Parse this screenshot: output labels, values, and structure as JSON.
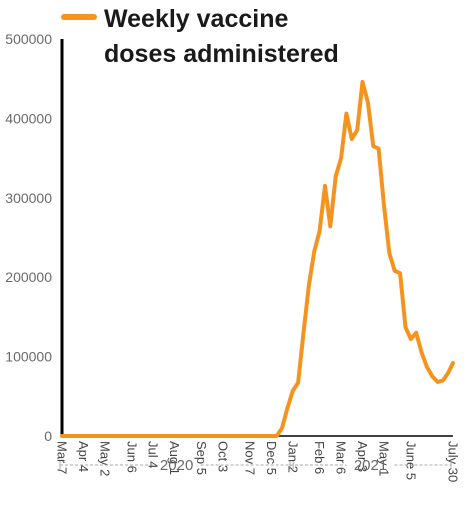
{
  "chart_data": {
    "type": "line",
    "legend": {
      "label_lines": [
        "Weekly vaccine",
        "doses administered"
      ],
      "placement": "top-left"
    },
    "colors": {
      "series": "#F5931F",
      "axis": "#000000",
      "text": "#6a6a6a",
      "bracket": "#aaaaaa"
    },
    "ylim": [
      0,
      500000
    ],
    "y_ticks": [
      0,
      100000,
      200000,
      300000,
      400000,
      500000
    ],
    "y_tick_labels": [
      "0",
      "100000",
      "200000",
      "300000",
      "400000",
      "500000"
    ],
    "x_range": [
      "2020-03-07",
      "2021-07-30"
    ],
    "x_ticks": [
      {
        "label": "Mar 7",
        "date": "2020-03-07"
      },
      {
        "label": "Apr 4",
        "date": "2020-04-04"
      },
      {
        "label": "May 2",
        "date": "2020-05-02"
      },
      {
        "label": "Jun 6",
        "date": "2020-06-06"
      },
      {
        "label": "Jul 4",
        "date": "2020-07-04"
      },
      {
        "label": "Aug 1",
        "date": "2020-08-01"
      },
      {
        "label": "Sep 5",
        "date": "2020-09-05"
      },
      {
        "label": "Oct 3",
        "date": "2020-10-03"
      },
      {
        "label": "Nov 7",
        "date": "2020-11-07"
      },
      {
        "label": "Dec 5",
        "date": "2020-12-05"
      },
      {
        "label": "Jan 2",
        "date": "2021-01-02"
      },
      {
        "label": "Feb 6",
        "date": "2021-02-06"
      },
      {
        "label": "Mar 6",
        "date": "2021-03-06"
      },
      {
        "label": "Apr 3",
        "date": "2021-04-03"
      },
      {
        "label": "May 1",
        "date": "2021-05-01"
      },
      {
        "label": "June 5",
        "date": "2021-06-05"
      },
      {
        "label": "July 30",
        "date": "2021-07-30"
      }
    ],
    "year_groups": [
      {
        "label": "2020",
        "start": "2020-03-07",
        "end": "2020-12-31"
      },
      {
        "label": "2021",
        "start": "2021-01-01",
        "end": "2021-07-30"
      }
    ],
    "series": [
      {
        "points": [
          [
            "2020-03-07",
            0
          ],
          [
            "2020-06-06",
            0
          ],
          [
            "2020-09-05",
            0
          ],
          [
            "2020-12-05",
            0
          ],
          [
            "2020-12-12",
            0
          ],
          [
            "2020-12-19",
            10000
          ],
          [
            "2020-12-26",
            35000
          ],
          [
            "2021-01-02",
            57000
          ],
          [
            "2021-01-09",
            67000
          ],
          [
            "2021-01-16",
            130000
          ],
          [
            "2021-01-23",
            190000
          ],
          [
            "2021-01-30",
            232000
          ],
          [
            "2021-02-06",
            258000
          ],
          [
            "2021-02-13",
            315000
          ],
          [
            "2021-02-20",
            264000
          ],
          [
            "2021-02-27",
            327000
          ],
          [
            "2021-03-06",
            350000
          ],
          [
            "2021-03-13",
            406000
          ],
          [
            "2021-03-20",
            374000
          ],
          [
            "2021-03-27",
            385000
          ],
          [
            "2021-04-03",
            446000
          ],
          [
            "2021-04-10",
            420000
          ],
          [
            "2021-04-17",
            365000
          ],
          [
            "2021-04-24",
            362000
          ],
          [
            "2021-05-01",
            290000
          ],
          [
            "2021-05-08",
            230000
          ],
          [
            "2021-05-15",
            208000
          ],
          [
            "2021-05-22",
            205000
          ],
          [
            "2021-05-29",
            137000
          ],
          [
            "2021-06-05",
            122000
          ],
          [
            "2021-06-12",
            130000
          ],
          [
            "2021-06-19",
            105000
          ],
          [
            "2021-06-26",
            87000
          ],
          [
            "2021-07-03",
            75000
          ],
          [
            "2021-07-10",
            68000
          ],
          [
            "2021-07-17",
            70000
          ],
          [
            "2021-07-24",
            80000
          ],
          [
            "2021-07-30",
            92000
          ]
        ]
      }
    ]
  }
}
